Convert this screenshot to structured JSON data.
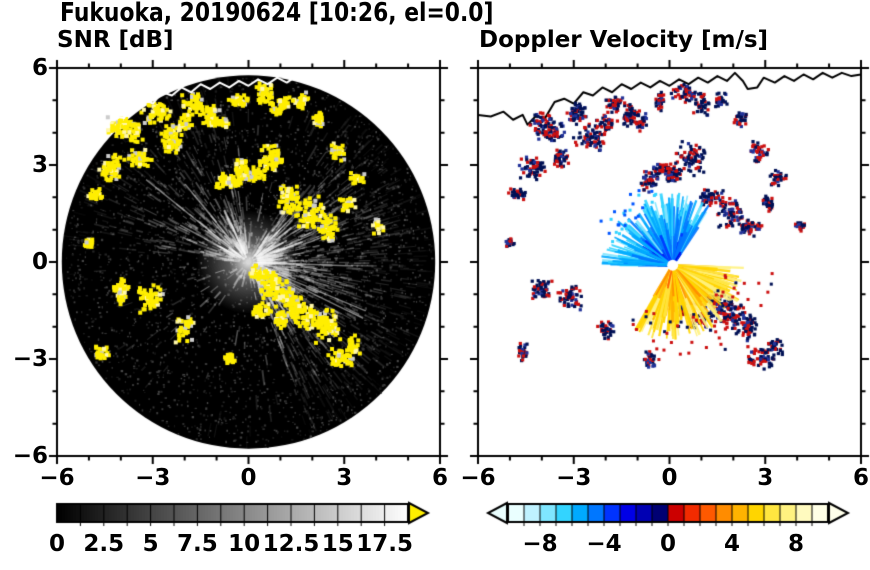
{
  "title": "Fukuoka, 20190624 [10:26, el=0.0]",
  "chart_data": {
    "type": "heatmap",
    "subtype": "dual-panel weather-radar PPI scan",
    "panels": [
      {
        "title": "SNR [dB]",
        "xlim": [
          -6,
          6
        ],
        "ylim": [
          -6,
          6
        ],
        "xticks": [
          "−6",
          "−3",
          "0",
          "3",
          "6"
        ],
        "yticks": [
          "6",
          "3",
          "0",
          "−3",
          "−6"
        ],
        "xtick_values": [
          -6,
          -3,
          0,
          3,
          6
        ],
        "ytick_values": [
          6,
          3,
          0,
          -3,
          -6
        ],
        "grid": false,
        "colorbar": {
          "range": [
            0,
            18.75
          ],
          "tick_labels": [
            "0",
            "2.5",
            "5",
            "7.5",
            "10",
            "12.5",
            "15",
            "17.5"
          ],
          "tick_values": [
            0,
            2.5,
            5,
            7.5,
            10,
            12.5,
            15,
            17.5
          ],
          "colormap": "grayscale black to white",
          "overflow_arrow_color": "#ffee00"
        }
      },
      {
        "title": "Doppler Velocity [m/s]",
        "xlim": [
          -6,
          6
        ],
        "ylim": [
          -6,
          6
        ],
        "xticks": [
          "−6",
          "−3",
          "0",
          "3",
          "6"
        ],
        "yticks": [
          "6",
          "3",
          "0",
          "−3",
          "−6"
        ],
        "xtick_values": [
          -6,
          -3,
          0,
          3,
          6
        ],
        "ytick_values": [
          6,
          3,
          0,
          -3,
          -6
        ],
        "grid": false,
        "colorbar": {
          "range": [
            -10,
            10
          ],
          "tick_labels": [
            "−8",
            "−4",
            "0",
            "4",
            "8"
          ],
          "tick_values": [
            -8,
            -4,
            0,
            4,
            8
          ],
          "colormap": "cyan-blue-navy / red-orange-yellow diverging",
          "left_arrow_color": "#eaffff",
          "right_arrow_color": "#ffffea",
          "stops": [
            [
              -10,
              "#eaffff"
            ],
            [
              -9,
              "#bff2ff"
            ],
            [
              -8,
              "#7fe6ff"
            ],
            [
              -7,
              "#33d4ff"
            ],
            [
              -6,
              "#00aaff"
            ],
            [
              -5,
              "#0077ff"
            ],
            [
              -4,
              "#0033ff"
            ],
            [
              -3,
              "#0000e6"
            ],
            [
              -2,
              "#0000b3"
            ],
            [
              -1,
              "#000073"
            ],
            [
              0,
              "#cc0000"
            ],
            [
              1,
              "#f22b00"
            ],
            [
              2,
              "#ff5900"
            ],
            [
              3,
              "#ff8c00"
            ],
            [
              4,
              "#ffb300"
            ],
            [
              5,
              "#ffd500"
            ],
            [
              6,
              "#ffe640"
            ],
            [
              7,
              "#fff280"
            ],
            [
              8,
              "#fffabf"
            ],
            [
              9,
              "#ffffe6"
            ]
          ]
        }
      }
    ],
    "radar": {
      "disk_radius": 5.85,
      "snr_palette": {
        "echo": "#ffee00",
        "echo_light": "#fff7aa",
        "bright": "#cccccc",
        "background": "#000000"
      },
      "doppler_palette": {
        "negative_core": "#001155",
        "positive_core": "#cc1111",
        "mixed": "#223399"
      },
      "fan": {
        "center": [
          0.1,
          -0.1
        ],
        "blue_angle_range": [
          55,
          182
        ],
        "orange_angle_range": [
          -122,
          -2
        ],
        "max_radius": 2.3
      },
      "coastline": [
        [
          -6,
          4.55
        ],
        [
          -5.6,
          4.5
        ],
        [
          -5.2,
          4.65
        ],
        [
          -4.9,
          4.4
        ],
        [
          -4.6,
          4.55
        ],
        [
          -4.45,
          4.25
        ],
        [
          -4.2,
          4.5
        ],
        [
          -3.9,
          4.45
        ],
        [
          -3.6,
          4.95
        ],
        [
          -3.3,
          5.05
        ],
        [
          -3.0,
          4.9
        ],
        [
          -2.7,
          5.25
        ],
        [
          -2.4,
          5.15
        ],
        [
          -2.1,
          5.4
        ],
        [
          -1.8,
          5.25
        ],
        [
          -1.5,
          5.5
        ],
        [
          -1.2,
          5.35
        ],
        [
          -0.9,
          5.55
        ],
        [
          -0.6,
          5.4
        ],
        [
          -0.3,
          5.6
        ],
        [
          0,
          5.45
        ],
        [
          0.3,
          5.65
        ],
        [
          0.6,
          5.5
        ],
        [
          0.9,
          5.7
        ],
        [
          1.2,
          5.55
        ],
        [
          1.5,
          5.75
        ],
        [
          1.8,
          5.6
        ],
        [
          2.05,
          5.85
        ],
        [
          2.3,
          5.6
        ],
        [
          2.45,
          5.35
        ],
        [
          2.75,
          5.4
        ],
        [
          2.95,
          5.7
        ],
        [
          3.3,
          5.55
        ],
        [
          3.6,
          5.75
        ],
        [
          3.9,
          5.6
        ],
        [
          4.2,
          5.8
        ],
        [
          4.5,
          5.65
        ],
        [
          4.8,
          5.85
        ],
        [
          5.1,
          5.7
        ],
        [
          5.4,
          5.85
        ],
        [
          5.7,
          5.75
        ],
        [
          6,
          5.8
        ]
      ],
      "echo_cells": [
        [
          -4.0,
          4.2,
          0.3
        ],
        [
          -3.6,
          4.0,
          0.22
        ],
        [
          -2.9,
          4.6,
          0.28
        ],
        [
          -2.4,
          3.8,
          0.33
        ],
        [
          -2.0,
          4.3,
          0.2
        ],
        [
          -1.7,
          4.9,
          0.24
        ],
        [
          -1.2,
          4.5,
          0.28
        ],
        [
          -0.9,
          4.3,
          0.18
        ],
        [
          -0.3,
          5.0,
          0.2
        ],
        [
          0.5,
          5.2,
          0.26
        ],
        [
          1.0,
          4.9,
          0.22
        ],
        [
          1.6,
          5.0,
          0.18
        ],
        [
          2.2,
          4.4,
          0.18
        ],
        [
          -0.6,
          2.5,
          0.28
        ],
        [
          -0.2,
          2.9,
          0.22
        ],
        [
          0.1,
          2.7,
          0.26
        ],
        [
          0.7,
          3.2,
          0.32
        ],
        [
          1.3,
          2.0,
          0.28
        ],
        [
          1.9,
          1.5,
          0.33
        ],
        [
          2.5,
          1.05,
          0.28
        ],
        [
          3.1,
          1.8,
          0.2
        ],
        [
          2.8,
          3.4,
          0.22
        ],
        [
          3.4,
          2.6,
          0.18
        ],
        [
          4.1,
          1.1,
          0.14
        ],
        [
          -3.4,
          3.2,
          0.24
        ],
        [
          -4.3,
          2.9,
          0.28
        ],
        [
          -4.8,
          2.1,
          0.18
        ],
        [
          -5.0,
          0.6,
          0.13
        ],
        [
          0.3,
          -0.3,
          0.22
        ],
        [
          0.7,
          -0.7,
          0.28
        ],
        [
          1.1,
          -1.0,
          0.28
        ],
        [
          1.5,
          -1.4,
          0.3
        ],
        [
          2.0,
          -1.7,
          0.33
        ],
        [
          2.5,
          -2.0,
          0.28
        ],
        [
          1.0,
          -1.8,
          0.24
        ],
        [
          0.4,
          -1.5,
          0.18
        ],
        [
          2.9,
          -2.95,
          0.28
        ],
        [
          3.3,
          -2.6,
          0.18
        ],
        [
          -3.1,
          -1.1,
          0.28
        ],
        [
          -4.0,
          -0.85,
          0.28
        ],
        [
          -4.6,
          -2.8,
          0.18
        ],
        [
          -2.0,
          -2.1,
          0.22
        ],
        [
          -0.6,
          -3.0,
          0.16
        ]
      ]
    }
  }
}
